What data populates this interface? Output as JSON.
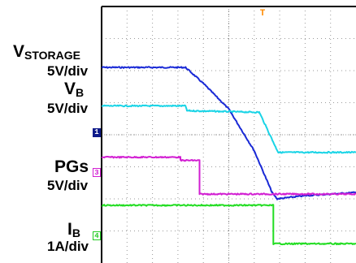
{
  "chart_data": {
    "type": "line",
    "title": "",
    "xlabel": "",
    "ylabel": "",
    "grid": true,
    "x_range": [
      0,
      10
    ],
    "y_range": [
      0,
      8
    ],
    "trigger_marker": "T",
    "series": [
      {
        "name": "VSTORAGE",
        "name_main": "V",
        "name_sub": "STORAGE",
        "scale": "5V/div",
        "channel": "1",
        "color": "#1a2ad6",
        "points": [
          [
            0,
            6.1
          ],
          [
            3.3,
            6.1
          ],
          [
            4.0,
            5.6
          ],
          [
            5.0,
            4.8
          ],
          [
            6.0,
            3.5
          ],
          [
            6.7,
            2.2
          ],
          [
            6.9,
            2.0
          ],
          [
            8.0,
            2.1
          ],
          [
            10,
            2.2
          ]
        ]
      },
      {
        "name": "VB",
        "name_main": "V",
        "name_sub": "B",
        "scale": "5V/div",
        "channel": "",
        "color": "#19d4e6",
        "points": [
          [
            0,
            4.9
          ],
          [
            3.3,
            4.9
          ],
          [
            3.35,
            4.75
          ],
          [
            6.2,
            4.7
          ],
          [
            6.85,
            3.6
          ],
          [
            6.95,
            3.45
          ],
          [
            10,
            3.45
          ]
        ]
      },
      {
        "name": "PGs",
        "name_main": "PGs",
        "name_sub": "",
        "scale": "5V/div",
        "channel": "3",
        "color": "#d21fd2",
        "points": [
          [
            0,
            3.3
          ],
          [
            3.1,
            3.3
          ],
          [
            3.1,
            3.2
          ],
          [
            3.85,
            3.2
          ],
          [
            3.85,
            2.15
          ],
          [
            10,
            2.15
          ]
        ]
      },
      {
        "name": "IB",
        "name_main": "I",
        "name_sub": "B",
        "scale": "1A/div",
        "channel": "4",
        "color": "#22dd22",
        "points": [
          [
            0,
            1.8
          ],
          [
            6.75,
            1.8
          ],
          [
            6.75,
            0.6
          ],
          [
            10,
            0.6
          ]
        ]
      }
    ]
  }
}
